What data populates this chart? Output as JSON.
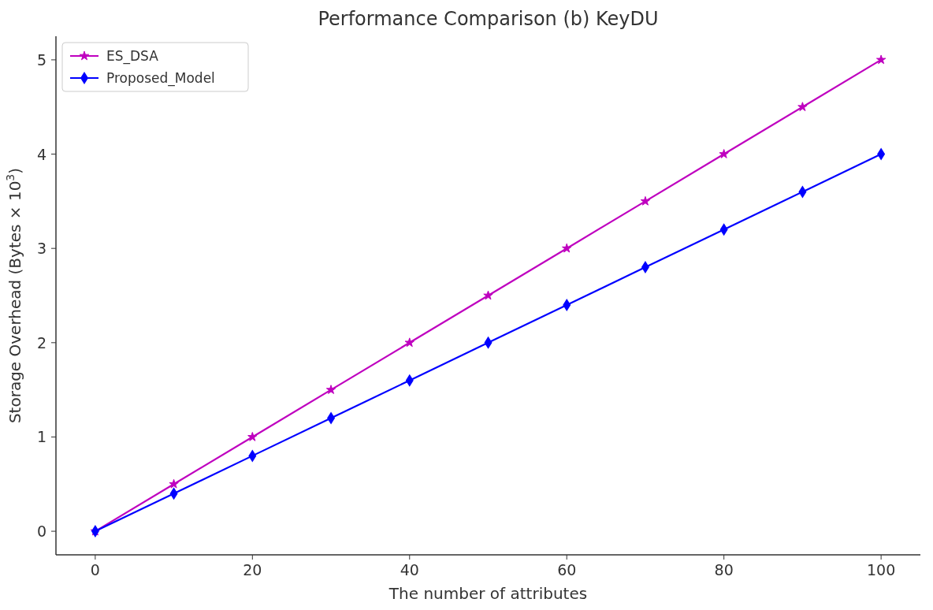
{
  "chart_data": {
    "type": "line",
    "title": "Performance Comparison (b) KeyDU",
    "xlabel": "The number of attributes",
    "ylabel": "Storage Overhead (Bytes × 10$^{3}$)",
    "x": [
      0,
      10,
      20,
      30,
      40,
      50,
      60,
      70,
      80,
      90,
      100
    ],
    "series": [
      {
        "name": "ES_DSA",
        "color": "#bf00bf",
        "marker": "star",
        "values": [
          0,
          0.5,
          1,
          1.5,
          2,
          2.5,
          3,
          3.5,
          4,
          4.5,
          5
        ]
      },
      {
        "name": "Proposed_Model",
        "color": "#0000ff",
        "marker": "diamond",
        "values": [
          0,
          0.4,
          0.8,
          1.2,
          1.6,
          2,
          2.4,
          2.8,
          3.2,
          3.6,
          4
        ]
      }
    ],
    "xlim": [
      -5,
      105
    ],
    "xticks": [
      0,
      20,
      40,
      60,
      80,
      100
    ],
    "ylim": [
      -0.25,
      5.25
    ],
    "yticks": [
      0,
      1,
      2,
      3,
      4,
      5
    ],
    "grid": false,
    "legend": "top left",
    "line_style": "solid"
  }
}
